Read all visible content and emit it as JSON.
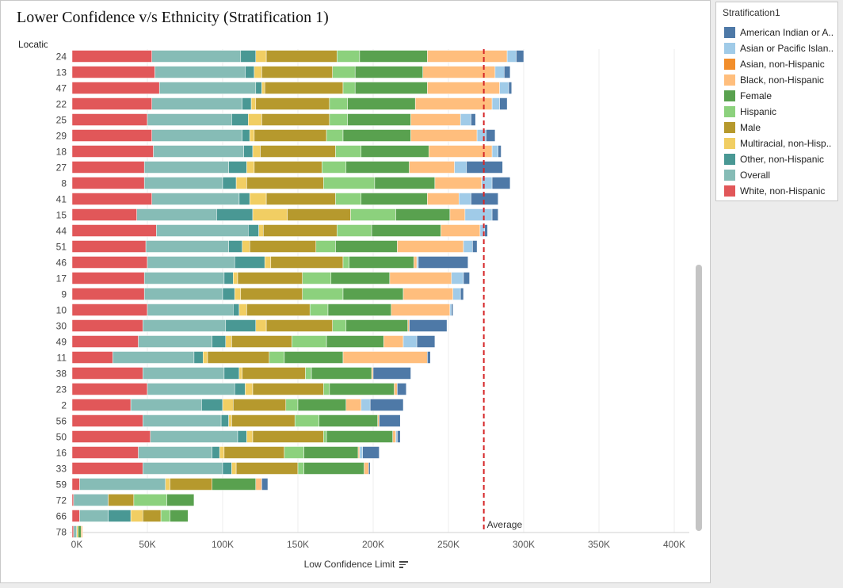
{
  "title": "Lower Confidence v/s Ethnicity (Stratification 1)",
  "location_header": "Location ID",
  "legend": {
    "title": "Stratification1",
    "items": [
      {
        "label": "American Indian or A..",
        "color": "#4e79a7"
      },
      {
        "label": "Asian or Pacific Islan..",
        "color": "#a0cbe8"
      },
      {
        "label": "Asian, non-Hispanic",
        "color": "#f28e2b"
      },
      {
        "label": "Black, non-Hispanic",
        "color": "#ffbe7d"
      },
      {
        "label": "Female",
        "color": "#59a14f"
      },
      {
        "label": "Hispanic",
        "color": "#8cd17d"
      },
      {
        "label": "Male",
        "color": "#b6992d"
      },
      {
        "label": "Multiracial, non-Hisp..",
        "color": "#f1ce63"
      },
      {
        "label": "Other, non-Hispanic",
        "color": "#499894"
      },
      {
        "label": "Overall",
        "color": "#86bcb6"
      },
      {
        "label": "White, non-Hispanic",
        "color": "#e15759"
      }
    ]
  },
  "chart_data": {
    "type": "bar",
    "orientation": "horizontal",
    "stacked": true,
    "title": "Lower Confidence v/s Ethnicity (Stratification 1)",
    "xlabel": "Low Confidence Limit",
    "ylabel": "Location ID",
    "xlim": [
      0,
      420000
    ],
    "xticks": [
      0,
      50000,
      100000,
      150000,
      200000,
      250000,
      300000,
      350000,
      400000
    ],
    "xtick_labels": [
      "0K",
      "50K",
      "100K",
      "150K",
      "200K",
      "250K",
      "300K",
      "350K",
      "400K"
    ],
    "reference_line": {
      "label": "Average",
      "value": 273500,
      "color": "#d62728",
      "style": "dashed"
    },
    "grid": "vertical",
    "legend_position": "right",
    "stack_order": [
      "White, non-Hispanic",
      "Overall",
      "Other, non-Hispanic",
      "Multiracial, non-Hispanic",
      "Male",
      "Hispanic",
      "Female",
      "Black, non-Hispanic",
      "Asian, non-Hispanic",
      "Asian or Pacific Islander",
      "American Indian or Alaska Native"
    ],
    "categories": [
      "24",
      "13",
      "47",
      "22",
      "25",
      "29",
      "18",
      "27",
      "8",
      "41",
      "15",
      "44",
      "51",
      "46",
      "17",
      "9",
      "10",
      "30",
      "49",
      "11",
      "38",
      "23",
      "2",
      "56",
      "50",
      "16",
      "33",
      "59",
      "72",
      "66",
      "78"
    ],
    "rows": [
      [
        53000,
        59000,
        10000,
        7000,
        47000,
        15000,
        45000,
        53000,
        0,
        6000,
        5000
      ],
      [
        55000,
        60000,
        6000,
        5000,
        47000,
        15000,
        45000,
        48000,
        0,
        6000,
        4000
      ],
      [
        58000,
        64000,
        4000,
        2000,
        52000,
        8000,
        48000,
        48000,
        0,
        6000,
        2000
      ],
      [
        53000,
        60000,
        6000,
        3000,
        49000,
        12000,
        45000,
        51000,
        0,
        5000,
        5000
      ],
      [
        50000,
        56000,
        11000,
        9000,
        45000,
        12000,
        42000,
        33000,
        0,
        7000,
        3000
      ],
      [
        53000,
        60000,
        5000,
        3000,
        48000,
        11000,
        45000,
        44000,
        0,
        6000,
        6000
      ],
      [
        54000,
        60000,
        6000,
        5000,
        50000,
        17000,
        45000,
        42000,
        0,
        4000,
        2000
      ],
      [
        48000,
        56000,
        12000,
        5000,
        45000,
        16000,
        42000,
        30000,
        0,
        8000,
        24000
      ],
      [
        48000,
        52000,
        9000,
        7000,
        51000,
        34000,
        40000,
        31000,
        0,
        7000,
        12000
      ],
      [
        53000,
        58000,
        7000,
        11000,
        46000,
        17000,
        44000,
        21000,
        0,
        8000,
        18000
      ],
      [
        43000,
        53000,
        24000,
        23000,
        42000,
        30000,
        36000,
        10000,
        0,
        18000,
        4000
      ],
      [
        56000,
        61000,
        7000,
        3000,
        49000,
        23000,
        46000,
        26000,
        0,
        3000,
        2000
      ],
      [
        49000,
        55000,
        9000,
        5000,
        44000,
        13000,
        41000,
        44000,
        0,
        6000,
        3000
      ],
      [
        50000,
        58000,
        20000,
        4000,
        48000,
        4000,
        43000,
        2000,
        0,
        1000,
        33000
      ],
      [
        48000,
        53000,
        6000,
        3000,
        43000,
        19000,
        39000,
        41000,
        0,
        8000,
        4000
      ],
      [
        48000,
        52000,
        8000,
        4000,
        41000,
        27000,
        40000,
        33000,
        0,
        5000,
        2000
      ],
      [
        50000,
        57000,
        4000,
        5000,
        42000,
        12000,
        42000,
        39000,
        0,
        1000,
        1000
      ],
      [
        47000,
        55000,
        20000,
        7000,
        44000,
        9000,
        41000,
        1000,
        0,
        0,
        25000
      ],
      [
        44000,
        49000,
        9000,
        4000,
        40000,
        23000,
        38000,
        13000,
        0,
        9000,
        12000
      ],
      [
        27000,
        54000,
        6000,
        3000,
        41000,
        10000,
        39000,
        56000,
        0,
        0,
        2000
      ],
      [
        47000,
        54000,
        10000,
        2000,
        42000,
        4000,
        40000,
        1000,
        0,
        0,
        25000
      ],
      [
        50000,
        58000,
        7000,
        5000,
        47000,
        4000,
        43000,
        2000,
        0,
        0,
        6000
      ],
      [
        39000,
        47000,
        14000,
        7000,
        35000,
        8000,
        32000,
        10000,
        0,
        6000,
        22000
      ],
      [
        47000,
        52000,
        5000,
        2000,
        42000,
        16000,
        39000,
        1000,
        0,
        0,
        14000
      ],
      [
        52000,
        58000,
        6000,
        4000,
        47000,
        2000,
        44000,
        2000,
        0,
        1000,
        2000
      ],
      [
        44000,
        49000,
        5000,
        3000,
        40000,
        13000,
        36000,
        1000,
        0,
        2000,
        11000
      ],
      [
        47000,
        53000,
        6000,
        3000,
        41000,
        4000,
        40000,
        3000,
        0,
        0,
        1000
      ],
      [
        5000,
        57000,
        0,
        3000,
        28000,
        0,
        29000,
        4000,
        0,
        0,
        4000
      ],
      [
        1000,
        23000,
        0,
        0,
        17000,
        22000,
        18000,
        0,
        0,
        0,
        0
      ],
      [
        5000,
        19000,
        15000,
        8000,
        12000,
        6000,
        12000,
        0,
        0,
        0,
        0
      ],
      [
        1000,
        2000,
        0,
        1000,
        0,
        0,
        2000,
        1000,
        0,
        0,
        0
      ]
    ]
  }
}
